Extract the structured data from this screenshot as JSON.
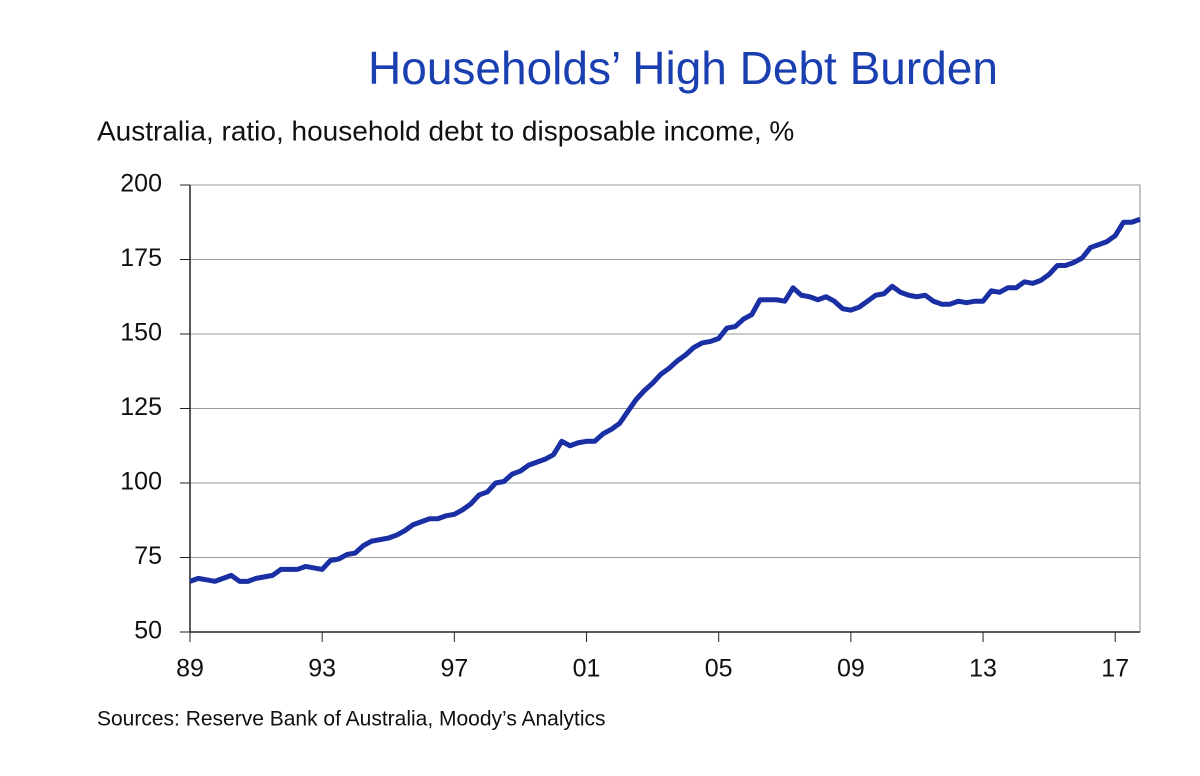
{
  "chart_data": {
    "type": "line",
    "title": "Households’ High Debt Burden",
    "subtitle": "Australia, ratio, household debt to disposable income, %",
    "source": "Sources: Reserve Bank of Australia, Moody’s Analytics",
    "x": [
      1989,
      1989.25,
      1989.5,
      1989.75,
      1990,
      1990.25,
      1990.5,
      1990.75,
      1991,
      1991.25,
      1991.5,
      1991.75,
      1992,
      1992.25,
      1992.5,
      1992.75,
      1993,
      1993.25,
      1993.5,
      1993.75,
      1994,
      1994.25,
      1994.5,
      1994.75,
      1995,
      1995.25,
      1995.5,
      1995.75,
      1996,
      1996.25,
      1996.5,
      1996.75,
      1997,
      1997.25,
      1997.5,
      1997.75,
      1998,
      1998.25,
      1998.5,
      1998.75,
      1999,
      1999.25,
      1999.5,
      1999.75,
      2000,
      2000.25,
      2000.5,
      2000.75,
      2001,
      2001.25,
      2001.5,
      2001.75,
      2002,
      2002.25,
      2002.5,
      2002.75,
      2003,
      2003.25,
      2003.5,
      2003.75,
      2004,
      2004.25,
      2004.5,
      2004.75,
      2005,
      2005.25,
      2005.5,
      2005.75,
      2006,
      2006.25,
      2006.5,
      2006.75,
      2007,
      2007.25,
      2007.5,
      2007.75,
      2008,
      2008.25,
      2008.5,
      2008.75,
      2009,
      2009.25,
      2009.5,
      2009.75,
      2010,
      2010.25,
      2010.5,
      2010.75,
      2011,
      2011.25,
      2011.5,
      2011.75,
      2012,
      2012.25,
      2012.5,
      2012.75,
      2013,
      2013.25,
      2013.5,
      2013.75,
      2014,
      2014.25,
      2014.5,
      2014.75,
      2015,
      2015.25,
      2015.5,
      2015.75,
      2016,
      2016.25,
      2016.5,
      2016.75,
      2017,
      2017.25,
      2017.5,
      2017.75
    ],
    "series": [
      {
        "color": "#1a2fa3",
        "values": [
          67,
          68,
          67.5,
          67,
          68,
          69,
          67,
          67,
          68,
          68.5,
          69,
          71,
          71,
          71,
          72,
          71.5,
          71,
          74,
          74.5,
          76,
          76.5,
          79,
          80.5,
          81,
          81.5,
          82.5,
          84,
          86,
          87,
          88,
          88,
          89,
          89.5,
          91,
          93,
          96,
          97,
          100,
          100.5,
          103,
          104,
          106,
          107,
          108,
          109.5,
          114,
          112.5,
          113.5,
          114,
          114,
          116.5,
          118,
          120,
          124,
          128,
          131,
          133.5,
          136.5,
          138.5,
          141,
          143,
          145.5,
          147,
          147.5,
          148.5,
          152,
          152.5,
          155,
          156.5,
          161.5,
          161.5,
          161.5,
          161,
          165.5,
          163,
          162.5,
          161.5,
          162.5,
          161,
          158.5,
          158,
          159,
          161,
          163,
          163.5,
          166,
          164,
          163,
          162.5,
          163,
          161,
          160,
          160,
          161,
          160.5,
          161,
          161,
          164.5,
          164,
          165.5,
          165.5,
          167.5,
          167,
          168,
          170,
          173,
          173,
          174,
          175.5,
          179,
          180,
          181,
          183,
          187.5,
          187.5,
          188.5
        ]
      }
    ],
    "xlim": [
      1989,
      2017.75
    ],
    "xticks": [
      {
        "value": 1989,
        "label": "89"
      },
      {
        "value": 1993,
        "label": "93"
      },
      {
        "value": 1997,
        "label": "97"
      },
      {
        "value": 2001,
        "label": "01"
      },
      {
        "value": 2005,
        "label": "05"
      },
      {
        "value": 2009,
        "label": "09"
      },
      {
        "value": 2013,
        "label": "13"
      },
      {
        "value": 2017,
        "label": "17"
      }
    ],
    "ylim": [
      50,
      200
    ],
    "yticks": [
      50,
      75,
      100,
      125,
      150,
      175,
      200
    ],
    "grid": true
  }
}
